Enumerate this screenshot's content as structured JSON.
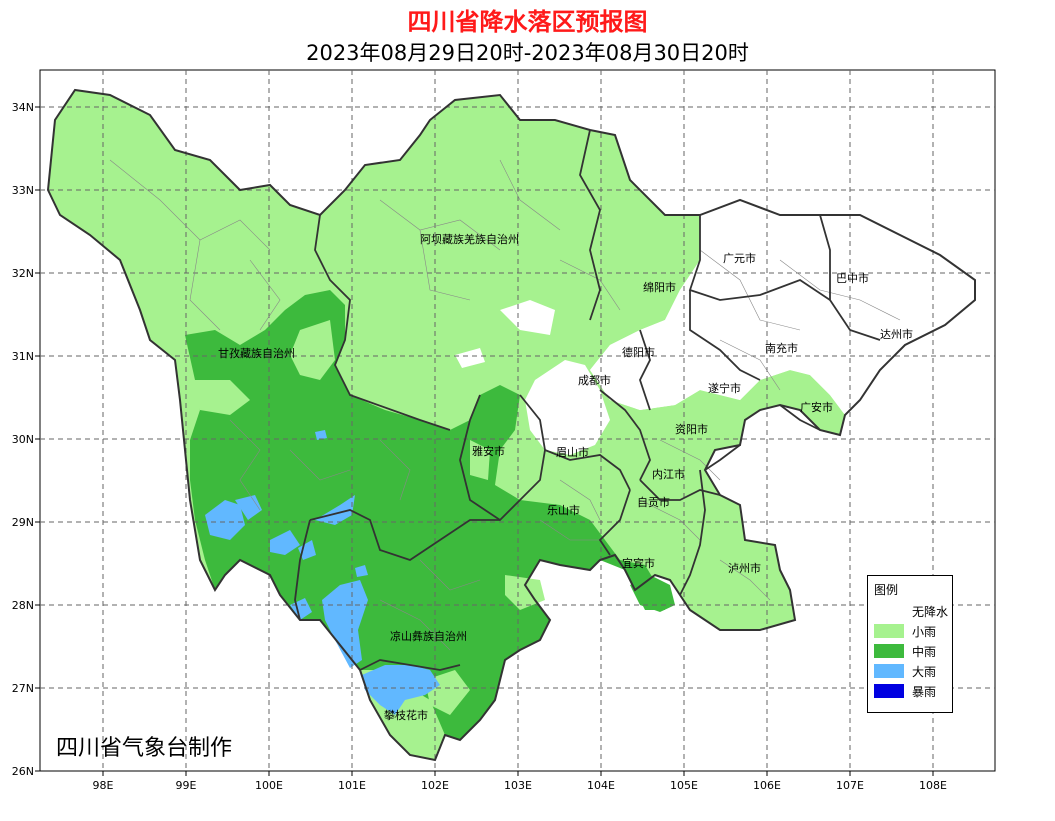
{
  "title": "四川省降水落区预报图",
  "subtitle": "2023年08月29日20时-2023年08月30日20时",
  "maker": "四川省气象台制作",
  "lat_ticks": [
    "34N",
    "33N",
    "32N",
    "31N",
    "30N",
    "29N",
    "28N",
    "27N",
    "26N"
  ],
  "lon_ticks": [
    "98E",
    "99E",
    "100E",
    "101E",
    "102E",
    "103E",
    "104E",
    "105E",
    "106E",
    "107E",
    "108E"
  ],
  "regions": {
    "aba": "阿坝藏族羌族自治州",
    "ganzi": "甘孜藏族自治州",
    "liangshan": "凉山彝族自治州"
  },
  "cities": {
    "guangyuan": "广元市",
    "bazhong": "巴中市",
    "mianyang": "绵阳市",
    "dazhou": "达州市",
    "deyang": "德阳市",
    "nanchong": "南充市",
    "chengdu": "成都市",
    "suining": "遂宁市",
    "guangan": "广安市",
    "ziyang": "资阳市",
    "yaan": "雅安市",
    "meishan": "眉山市",
    "neijiang": "内江市",
    "zigong": "自贡市",
    "leshan": "乐山市",
    "yibin": "宜宾市",
    "luzhou": "泸州市",
    "panzhihua": "攀枝花市"
  },
  "legend": {
    "title": "图例",
    "items": [
      {
        "label": "无降水",
        "color": "#ffffff"
      },
      {
        "label": "小雨",
        "color": "#a6f28f"
      },
      {
        "label": "中雨",
        "color": "#3dba3d"
      },
      {
        "label": "大雨",
        "color": "#61b8ff"
      },
      {
        "label": "暴雨",
        "color": "#0000e1"
      }
    ]
  },
  "colors": {
    "light_rain": "#a6f28f",
    "moderate_rain": "#3dba3d",
    "heavy_rain": "#61b8ff",
    "no_rain": "#ffffff",
    "title_red": "#ff1a1a"
  }
}
